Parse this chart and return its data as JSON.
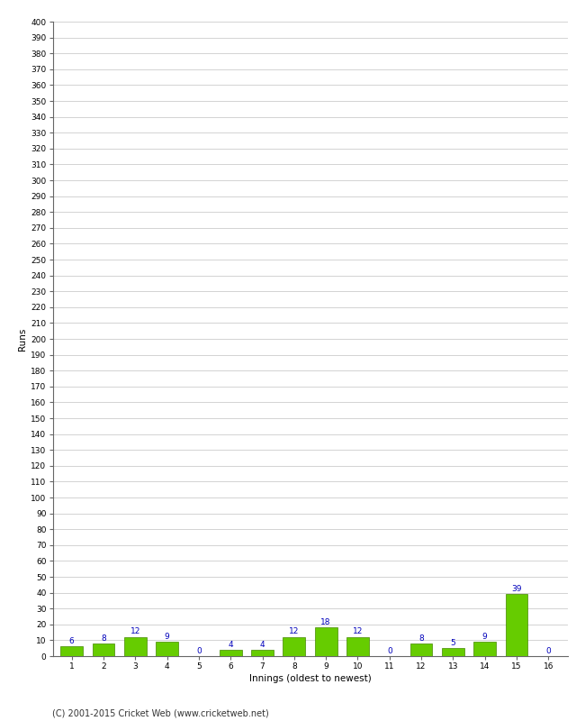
{
  "xlabel": "Innings (oldest to newest)",
  "ylabel": "Runs",
  "categories": [
    1,
    2,
    3,
    4,
    5,
    6,
    7,
    8,
    9,
    10,
    11,
    12,
    13,
    14,
    15,
    16
  ],
  "values": [
    6,
    8,
    12,
    9,
    0,
    4,
    4,
    12,
    18,
    12,
    0,
    8,
    5,
    9,
    39,
    0
  ],
  "bar_color": "#66cc00",
  "bar_edge_color": "#448800",
  "value_label_color": "#0000bb",
  "ylim": [
    0,
    400
  ],
  "ytick_step": 10,
  "background_color": "#ffffff",
  "grid_color": "#cccccc",
  "footer_text": "(C) 2001-2015 Cricket Web (www.cricketweb.net)",
  "value_fontsize": 6.5,
  "axis_label_fontsize": 7.5,
  "tick_fontsize": 6.5,
  "footer_fontsize": 7
}
